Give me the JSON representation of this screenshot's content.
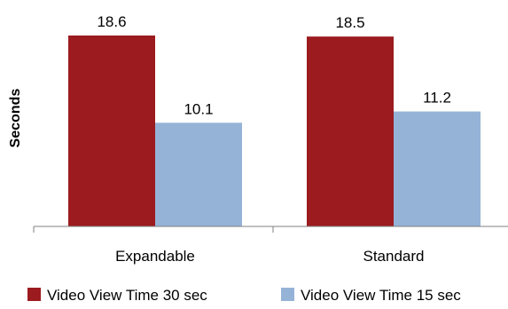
{
  "chart_data": {
    "type": "bar",
    "title": "",
    "xlabel": "",
    "ylabel": "Seconds",
    "categories": [
      "Expandable",
      "Standard"
    ],
    "series": [
      {
        "name": "Video View Time 30 sec",
        "color": "#9b1b1f",
        "values": [
          18.6,
          18.5
        ]
      },
      {
        "name": "Video View Time 15 sec",
        "color": "#95b3d7",
        "values": [
          10.1,
          11.2
        ]
      }
    ],
    "ylim": [
      0,
      20
    ],
    "grid": false,
    "legend": "bottom"
  }
}
